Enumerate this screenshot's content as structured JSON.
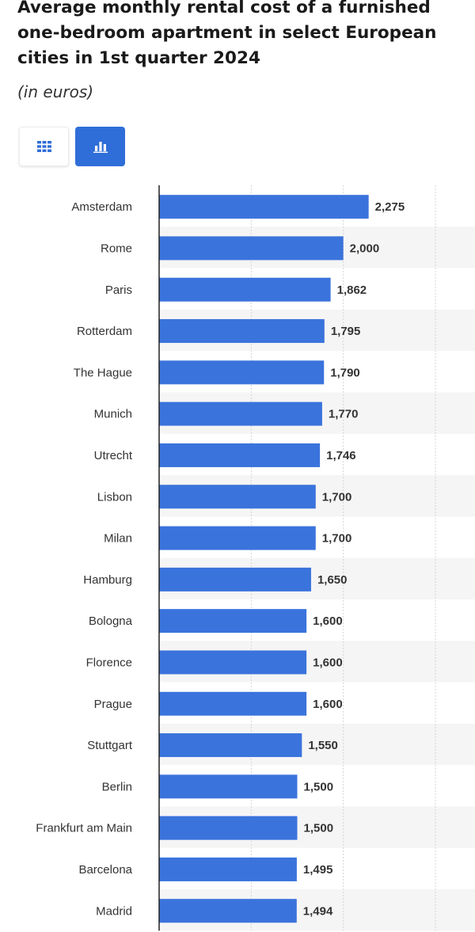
{
  "title": "Average monthly rental cost of a furnished one-bedroom apartment in select European cities in 1st quarter 2024",
  "subtitle": "(in euros)",
  "toolbar": {
    "table_icon": "grid-icon",
    "chart_icon": "bar-chart-icon",
    "active": "chart"
  },
  "colors": {
    "bar": "#3a73dc",
    "band": "#f5f5f5",
    "grid": "#d4d4d4",
    "axis": "#222222",
    "toggle_active": "#2f6ed8"
  },
  "chart_data": {
    "type": "bar",
    "orientation": "horizontal",
    "categories": [
      "Amsterdam",
      "Rome",
      "Paris",
      "Rotterdam",
      "The Hague",
      "Munich",
      "Utrecht",
      "Lisbon",
      "Milan",
      "Hamburg",
      "Bologna",
      "Florence",
      "Prague",
      "Stuttgart",
      "Berlin",
      "Frankfurt am Main",
      "Barcelona",
      "Madrid"
    ],
    "values": [
      2275,
      2000,
      1862,
      1795,
      1790,
      1770,
      1746,
      1700,
      1700,
      1650,
      1600,
      1600,
      1600,
      1550,
      1500,
      1500,
      1495,
      1494
    ],
    "value_labels": [
      "2,275",
      "2,000",
      "1,862",
      "1,795",
      "1,790",
      "1,770",
      "1,746",
      "1,700",
      "1,700",
      "1,650",
      "1,600",
      "1,600",
      "1,600",
      "1,550",
      "1,500",
      "1,500",
      "1,495",
      "1,494"
    ],
    "xlim": [
      0,
      3000
    ],
    "gridlines": [
      0,
      1000,
      2000,
      3000
    ],
    "grid": true,
    "alternating_bands": true,
    "legend": "none"
  }
}
